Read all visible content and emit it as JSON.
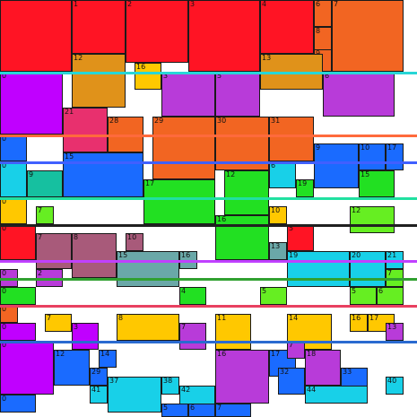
{
  "palette": {
    "red": "#ff1424",
    "orange": "#f26522",
    "amber": "#e0921a",
    "magenta": "#c000ff",
    "purple": "#b83bd9",
    "pink": "#e8306e",
    "blue": "#1a6bff",
    "cyan": "#18d0e8",
    "teal": "#16c0a0",
    "green": "#22e022",
    "lime": "#66ee22",
    "yellow": "#ffc800",
    "mauve": "#a85a7a",
    "slate": "#6aa8a8"
  },
  "band_colors": [
    "#28d6d6",
    "#ff6a3c",
    "#4060ff",
    "#20e0a0",
    "#202020",
    "#c040ff",
    "#30a030",
    "#e84060",
    "#2a6ad0"
  ],
  "cells": [
    {
      "label": "",
      "color": "red"
    },
    {
      "label": "1",
      "color": "red"
    },
    {
      "label": "2",
      "color": "red"
    },
    {
      "label": "3",
      "color": "red"
    },
    {
      "label": "4",
      "color": "red"
    },
    {
      "label": "6",
      "color": "orange"
    },
    {
      "label": "7",
      "color": "orange"
    },
    {
      "label": "8",
      "color": "orange"
    },
    {
      "label": "9",
      "color": "orange"
    },
    {
      "label": "12",
      "color": "amber"
    },
    {
      "label": "16",
      "color": "yellow"
    },
    {
      "label": "13",
      "color": "amber"
    },
    {
      "label": "0",
      "color": "magenta"
    },
    {
      "label": "3",
      "color": "purple"
    },
    {
      "label": "5",
      "color": "purple"
    },
    {
      "label": "6",
      "color": "purple"
    },
    {
      "label": "21",
      "color": "pink"
    },
    {
      "label": "28",
      "color": "orange"
    },
    {
      "label": "29",
      "color": "orange"
    },
    {
      "label": "30",
      "color": "orange"
    },
    {
      "label": "31",
      "color": "orange"
    },
    {
      "label": "0",
      "color": "blue"
    },
    {
      "label": "15",
      "color": "blue"
    },
    {
      "label": "6",
      "color": "cyan"
    },
    {
      "label": "9",
      "color": "blue"
    },
    {
      "label": "10",
      "color": "blue"
    },
    {
      "label": "17",
      "color": "blue"
    },
    {
      "label": "0",
      "color": "cyan"
    },
    {
      "label": "9",
      "color": "teal"
    },
    {
      "label": "12",
      "color": "green"
    },
    {
      "label": "17",
      "color": "green"
    },
    {
      "label": "19",
      "color": "green"
    },
    {
      "label": "15",
      "color": "green"
    },
    {
      "label": "0",
      "color": "yellow"
    },
    {
      "label": "7",
      "color": "lime"
    },
    {
      "label": "16",
      "color": "green"
    },
    {
      "label": "10",
      "color": "yellow"
    },
    {
      "label": "12",
      "color": "lime"
    },
    {
      "label": "0",
      "color": "red"
    },
    {
      "label": "7",
      "color": "mauve"
    },
    {
      "label": "8",
      "color": "mauve"
    },
    {
      "label": "10",
      "color": "mauve"
    },
    {
      "label": "5",
      "color": "red"
    },
    {
      "label": "13",
      "color": "slate"
    },
    {
      "label": "15",
      "color": "slate"
    },
    {
      "label": "16",
      "color": "slate"
    },
    {
      "label": "19",
      "color": "cyan"
    },
    {
      "label": "20",
      "color": "cyan"
    },
    {
      "label": "21",
      "color": "cyan"
    },
    {
      "label": "0",
      "color": "purple"
    },
    {
      "label": "2",
      "color": "purple"
    },
    {
      "label": "7",
      "color": "lime"
    },
    {
      "label": "0",
      "color": "green"
    },
    {
      "label": "4",
      "color": "green"
    },
    {
      "label": "5",
      "color": "lime"
    },
    {
      "label": "5",
      "color": "lime"
    },
    {
      "label": "6",
      "color": "lime"
    },
    {
      "label": "0",
      "color": "orange"
    },
    {
      "label": "7",
      "color": "yellow"
    },
    {
      "label": "8",
      "color": "yellow"
    },
    {
      "label": "11",
      "color": "yellow"
    },
    {
      "label": "14",
      "color": "yellow"
    },
    {
      "label": "16",
      "color": "yellow"
    },
    {
      "label": "17",
      "color": "yellow"
    },
    {
      "label": "0",
      "color": "magenta"
    },
    {
      "label": "3",
      "color": "magenta"
    },
    {
      "label": "7",
      "color": "purple"
    },
    {
      "label": "13",
      "color": "purple"
    },
    {
      "label": "0",
      "color": "magenta"
    },
    {
      "label": "12",
      "color": "blue"
    },
    {
      "label": "29",
      "color": "blue"
    },
    {
      "label": "14",
      "color": "blue"
    },
    {
      "label": "16",
      "color": "purple"
    },
    {
      "label": "17",
      "color": "blue"
    },
    {
      "label": "7",
      "color": "purple"
    },
    {
      "label": "18",
      "color": "purple"
    },
    {
      "label": "37",
      "color": "cyan"
    },
    {
      "label": "38",
      "color": "cyan"
    },
    {
      "label": "41",
      "color": "cyan"
    },
    {
      "label": "42",
      "color": "cyan"
    },
    {
      "label": "32",
      "color": "blue"
    },
    {
      "label": "33",
      "color": "blue"
    },
    {
      "label": "40",
      "color": "cyan"
    },
    {
      "label": "44",
      "color": "cyan"
    },
    {
      "label": "0",
      "color": "blue"
    },
    {
      "label": "5",
      "color": "blue"
    },
    {
      "label": "6",
      "color": "blue"
    },
    {
      "label": "7",
      "color": "blue"
    }
  ]
}
